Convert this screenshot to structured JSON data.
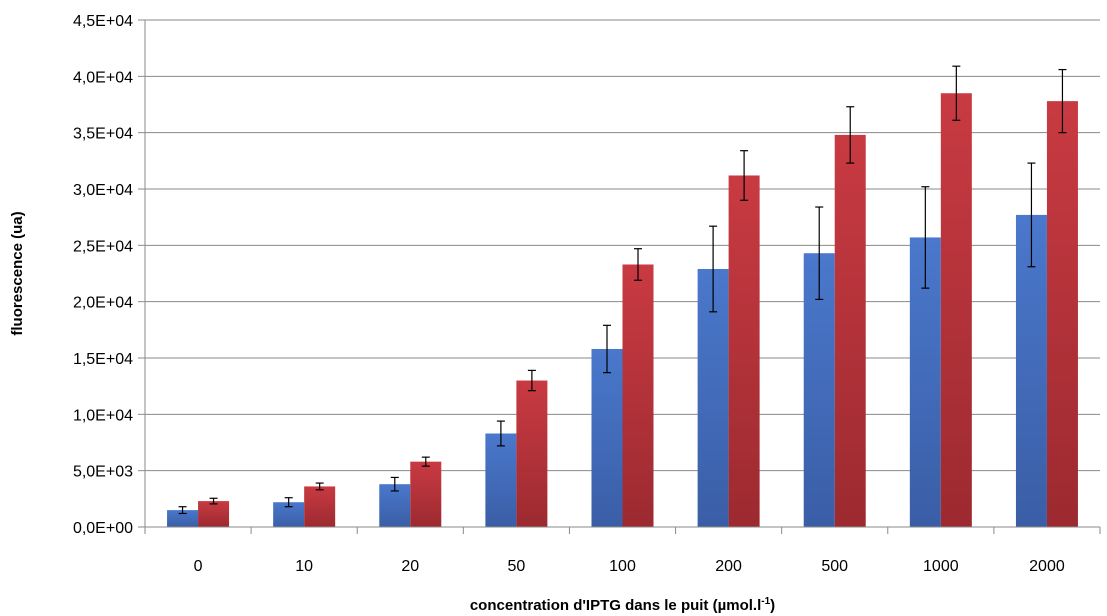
{
  "chart_data": {
    "type": "bar",
    "title": "",
    "xlabel": "concentration d'IPTG dans le puit (µmol.l",
    "xlabel_sup": "-1",
    "xlabel_end": ")",
    "ylabel": "fluorescence (ua)",
    "categories": [
      "0",
      "10",
      "20",
      "50",
      "100",
      "200",
      "500",
      "1000",
      "2000"
    ],
    "ylim": [
      0,
      45000
    ],
    "y_ticks": [
      0,
      5000,
      10000,
      15000,
      20000,
      25000,
      30000,
      35000,
      40000,
      45000
    ],
    "y_tick_labels": [
      "0,0E+00",
      "5,0E+03",
      "1,0E+04",
      "1,5E+04",
      "2,0E+04",
      "2,5E+04",
      "3,0E+04",
      "3,5E+04",
      "4,0E+04",
      "4,5E+04"
    ],
    "grid": true,
    "legend": "none",
    "series": [
      {
        "values": [
          1500,
          2200,
          3800,
          8300,
          15800,
          22900,
          24300,
          25700,
          27700
        ],
        "errors": [
          300,
          400,
          600,
          1100,
          2100,
          3800,
          4100,
          4500,
          4600
        ],
        "color": "#4a74c4"
      },
      {
        "values": [
          2300,
          3600,
          5800,
          13000,
          23300,
          31200,
          34800,
          38500,
          37800
        ],
        "errors": [
          250,
          300,
          400,
          900,
          1400,
          2200,
          2500,
          2400,
          2800
        ],
        "color": "#c0393f"
      }
    ]
  }
}
